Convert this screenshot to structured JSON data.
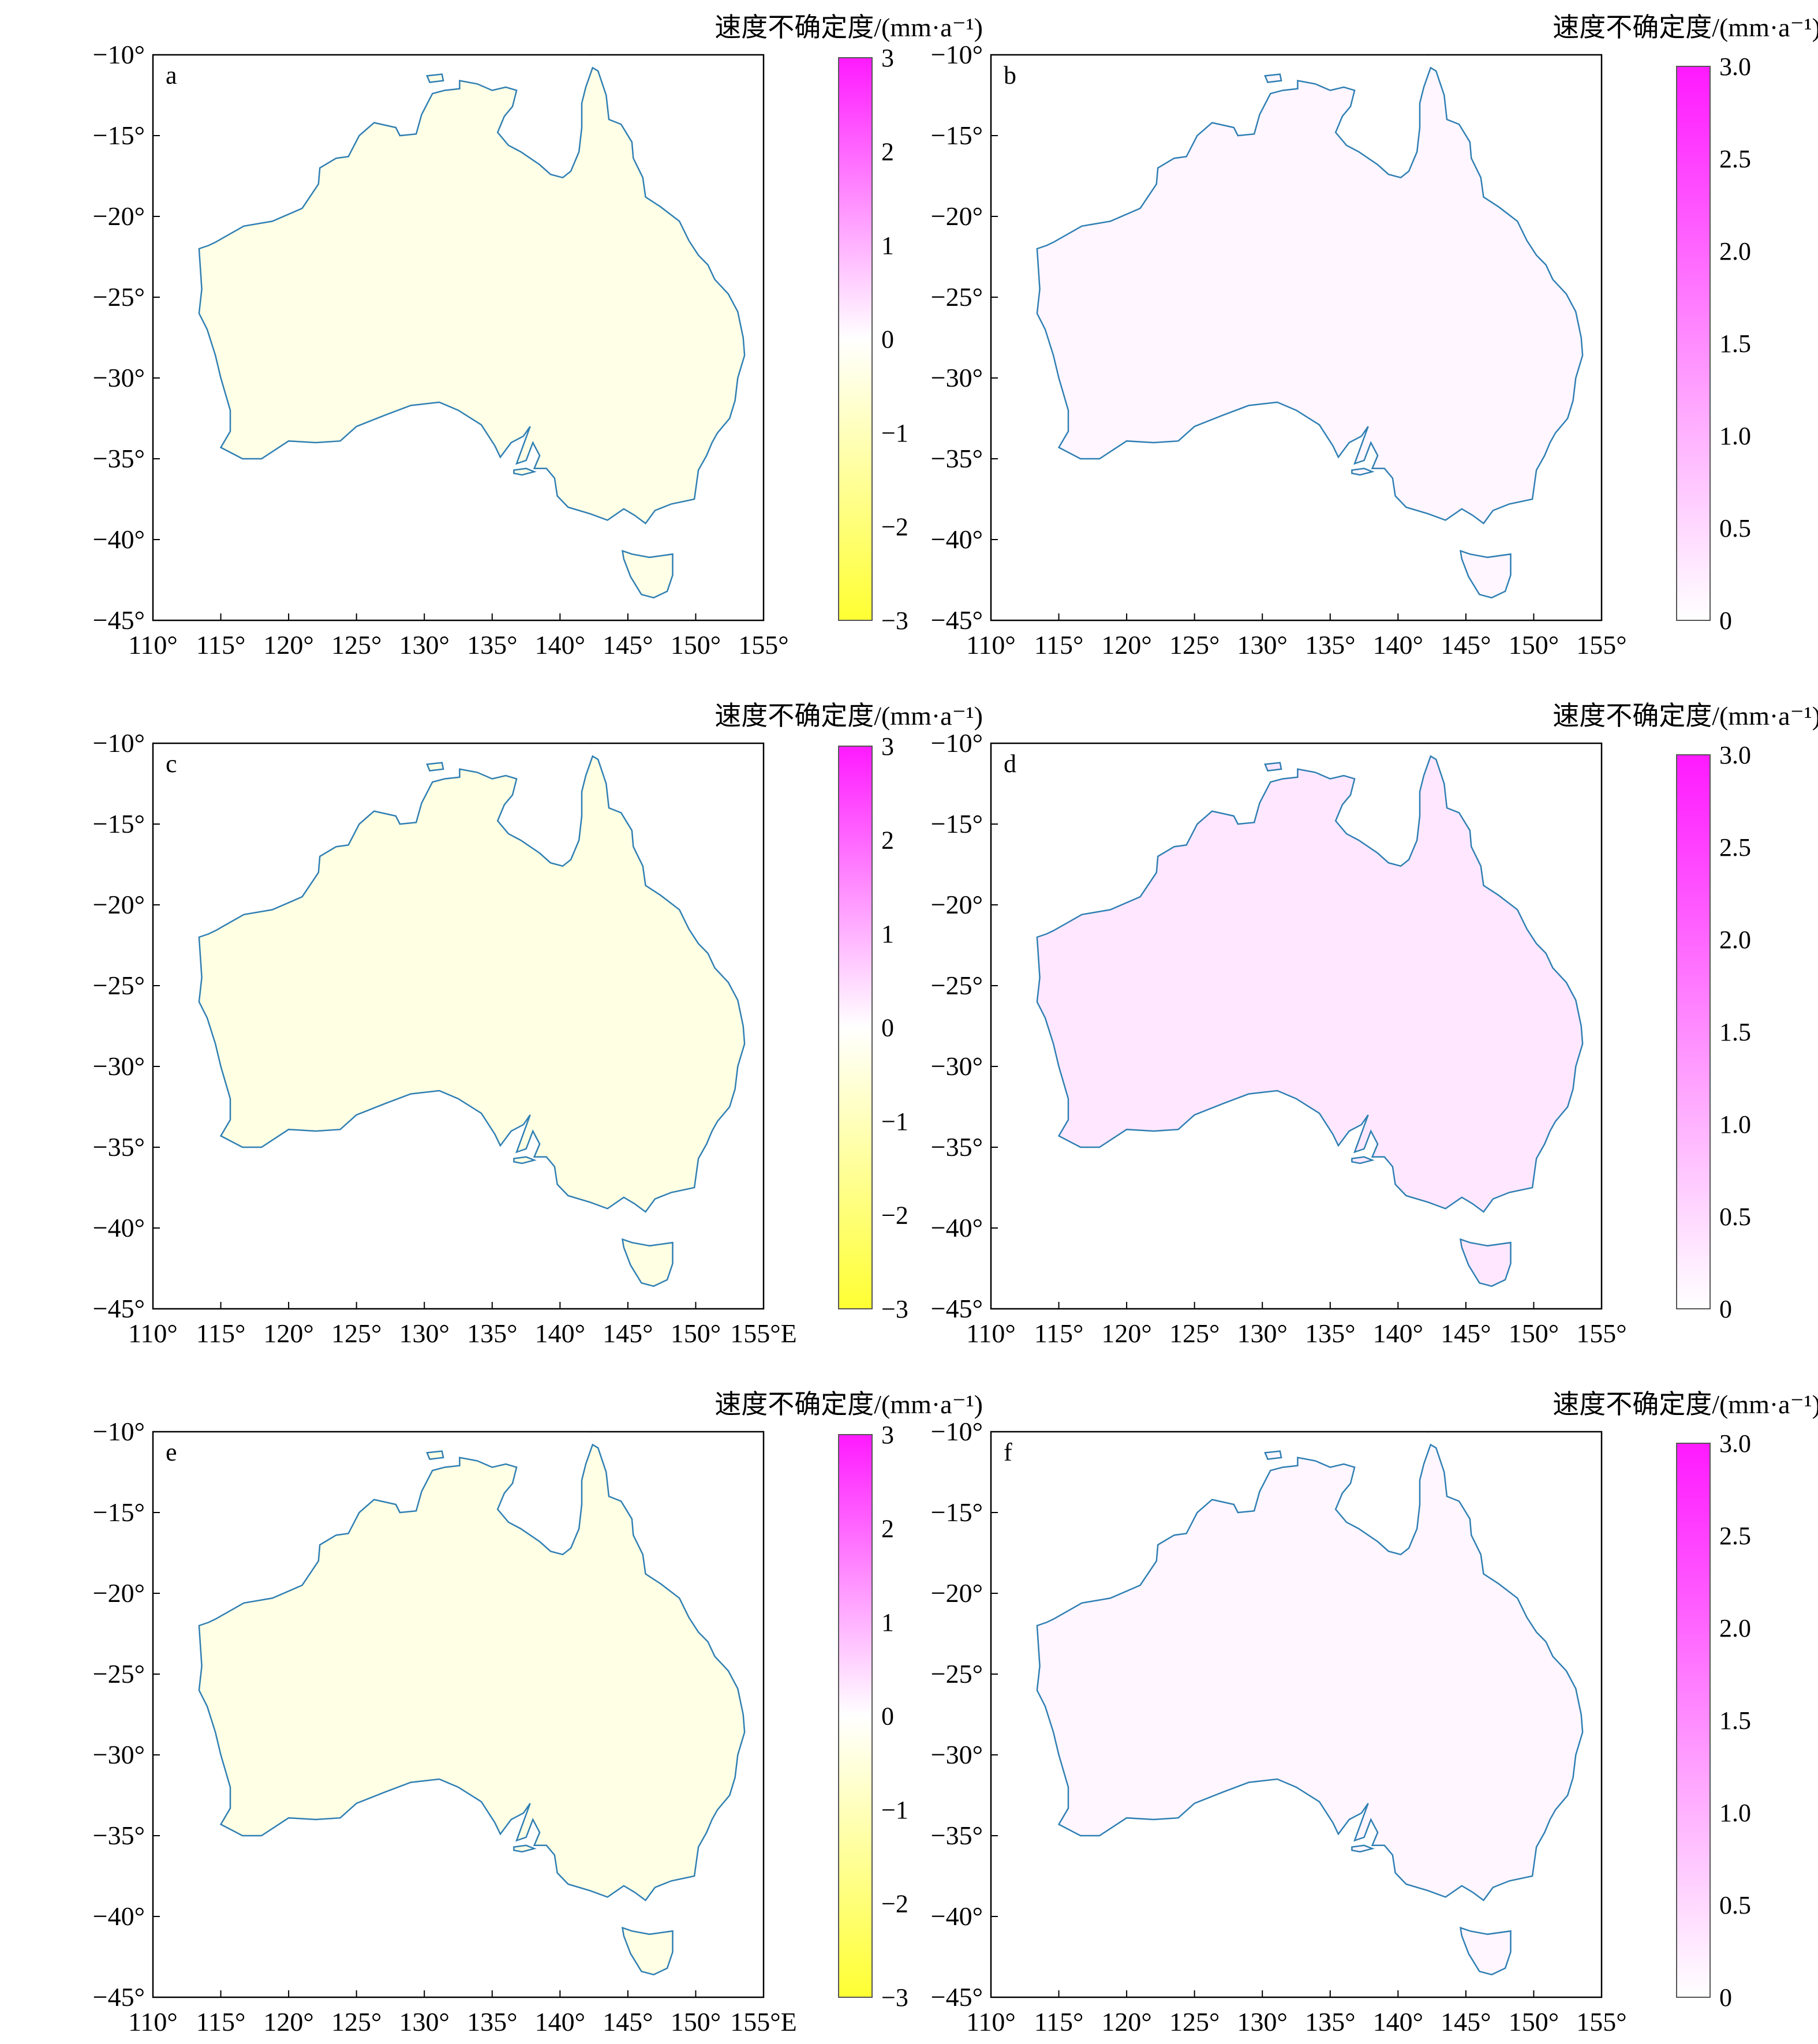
{
  "colors": {
    "negative_extreme": "#ffff33",
    "zero": "#ffffff",
    "positive_extreme": "#ff1aff",
    "coastline": "#2f7fb3",
    "frame": "#000000"
  },
  "x_ticks": [
    "110°",
    "115°",
    "120°",
    "125°",
    "130°",
    "135°",
    "140°",
    "145°",
    "150°",
    "155°"
  ],
  "x_ticks_east": [
    "110°",
    "115°",
    "120°",
    "125°",
    "130°",
    "135°",
    "140°",
    "145°",
    "150°",
    "155°E"
  ],
  "y_ticks": [
    "−10°",
    "−15°",
    "−20°",
    "−25°",
    "−30°",
    "−35°",
    "−40°",
    "−45°"
  ],
  "colorbar_title": "速度不确定度/(mm·a⁻¹)",
  "diverging_ticks": [
    "3",
    "2",
    "1",
    "0",
    "−1",
    "−2",
    "−3"
  ],
  "sequential_ticks": [
    "3.0",
    "2.5",
    "2.0",
    "1.5",
    "1.0",
    "0.5",
    "0"
  ],
  "chart_data": [
    {
      "type": "heatmap",
      "panel": "a",
      "projection": "map",
      "x_ticks": "x_ticks",
      "xlim": [
        110,
        155
      ],
      "ylim": [
        -45,
        -10
      ],
      "colorbar": {
        "kind": "diverging",
        "range": [
          -3,
          3
        ]
      },
      "field_level": -0.35,
      "grid": false
    },
    {
      "type": "scatter",
      "panel": "b",
      "projection": "map",
      "x_ticks": "x_ticks",
      "xlim": [
        110,
        155
      ],
      "ylim": [
        -45,
        -10
      ],
      "colorbar": {
        "kind": "sequential",
        "range": [
          0,
          3.0
        ]
      },
      "field_level": 0.12,
      "grid": false
    },
    {
      "type": "heatmap",
      "panel": "c",
      "projection": "map",
      "x_ticks": "x_ticks_east",
      "xlim": [
        110,
        155
      ],
      "ylim": [
        -45,
        -10
      ],
      "colorbar": {
        "kind": "diverging",
        "range": [
          -3,
          3
        ]
      },
      "field_level": -0.4,
      "grid": false
    },
    {
      "type": "scatter",
      "panel": "d",
      "projection": "map",
      "x_ticks": "x_ticks",
      "xlim": [
        110,
        155
      ],
      "ylim": [
        -45,
        -10
      ],
      "colorbar": {
        "kind": "sequential",
        "range": [
          0,
          3.0
        ]
      },
      "field_level": 0.3,
      "grid": false
    },
    {
      "type": "heatmap",
      "panel": "e",
      "projection": "map",
      "x_ticks": "x_ticks_east",
      "xlim": [
        110,
        155
      ],
      "ylim": [
        -45,
        -10
      ],
      "colorbar": {
        "kind": "diverging",
        "range": [
          -3,
          3
        ]
      },
      "field_level": -0.38,
      "grid": false
    },
    {
      "type": "scatter",
      "panel": "f",
      "projection": "map",
      "x_ticks": "x_ticks",
      "xlim": [
        110,
        155
      ],
      "ylim": [
        -45,
        -10
      ],
      "colorbar": {
        "kind": "sequential",
        "range": [
          0,
          3.0
        ]
      },
      "field_level": 0.12,
      "grid": false
    }
  ]
}
